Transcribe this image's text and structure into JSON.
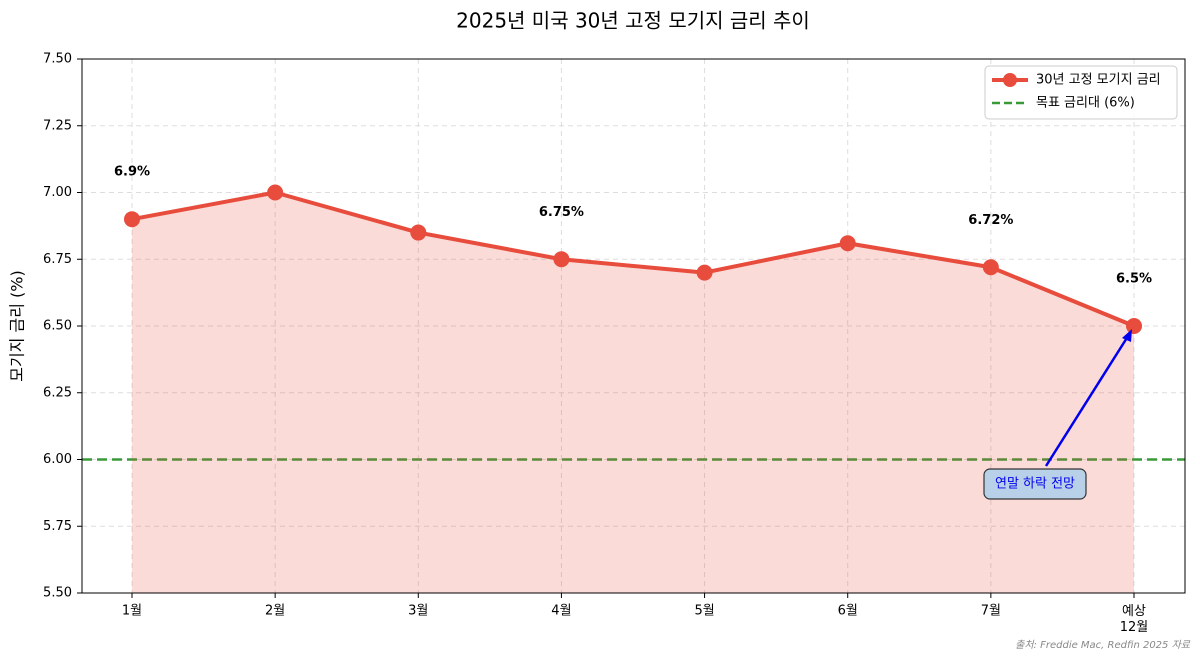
{
  "chart_data": {
    "type": "line",
    "title": "2025년 미국 30년 고정 모기지 금리 추이",
    "y_label": "모기지 금리 (%)",
    "categories": [
      "1월",
      "2월",
      "3월",
      "4월",
      "5월",
      "6월",
      "7월",
      "예상\n12월"
    ],
    "series": [
      {
        "name": "30년 고정 모기지 금리",
        "color": "#e74c3c",
        "values": [
          6.9,
          7.0,
          6.85,
          6.75,
          6.7,
          6.81,
          6.72,
          6.5
        ],
        "value_labels": [
          "6.9%",
          null,
          null,
          "6.75%",
          null,
          null,
          "6.72%",
          "6.5%"
        ]
      }
    ],
    "reference_line": {
      "value": 6,
      "name": "목표 금리대 (6%)",
      "color": "#3a9a3a"
    },
    "annotation": {
      "text": "연말 하락 전망",
      "color": "#0000ee"
    },
    "ylim": [
      5.5,
      7.5
    ],
    "yticks": [
      {
        "value": 5.5,
        "label": "5.50"
      },
      5.75,
      {
        "value": 6,
        "label": "6.00"
      },
      6.25,
      {
        "value": 6.5,
        "label": "6.50"
      },
      6.75,
      {
        "value": 7,
        "label": "7.00"
      },
      7.25,
      {
        "value": 7.5,
        "label": "7.50"
      }
    ],
    "grid": true,
    "legend": "upper right",
    "source": "출처: Freddie Mac, Redfin 2025 자료"
  }
}
